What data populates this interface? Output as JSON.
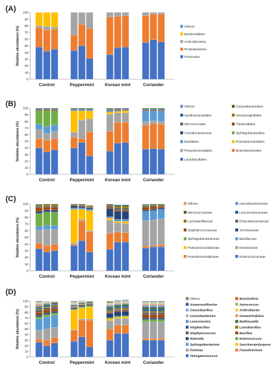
{
  "chart_data": [
    {
      "panel_label": "(A)",
      "type": "bar",
      "stacked": true,
      "ylabel": "Relative abundance (%)",
      "ylim": [
        0,
        100
      ],
      "yticks": [
        0,
        10,
        20,
        30,
        40,
        50,
        60,
        70,
        80,
        90,
        100
      ],
      "groups": [
        "Control",
        "Peppermint",
        "Korean mint",
        "Coriander"
      ],
      "bars_per_group": 3,
      "legend_italic": false,
      "legend_columns": 1,
      "series": [
        {
          "name": "Firmicutes",
          "color": "#4472C4",
          "values": [
            48,
            42,
            45,
            43,
            50,
            31,
            37,
            47,
            48,
            55,
            59,
            56
          ]
        },
        {
          "name": "Proteobacteria",
          "color": "#ED7D31",
          "values": [
            29,
            32,
            30,
            23,
            32,
            45,
            56,
            47,
            47,
            40,
            38,
            41
          ]
        },
        {
          "name": "Actinobacteria",
          "color": "#A5A5A5",
          "values": [
            3,
            5,
            3,
            34,
            18,
            24,
            7,
            6,
            5,
            5,
            3,
            3
          ]
        },
        {
          "name": "Bacteroidetes",
          "color": "#FFC000",
          "values": [
            20,
            21,
            22,
            0,
            0,
            0,
            0,
            0,
            0,
            0,
            0,
            0
          ]
        },
        {
          "name": "Others",
          "color": "#5B9BD5",
          "values": [
            0,
            0,
            0,
            0,
            0,
            0,
            0,
            0,
            0,
            0,
            0,
            0
          ]
        }
      ]
    },
    {
      "panel_label": "(B)",
      "type": "bar",
      "stacked": true,
      "ylabel": "Relative abundance (%)",
      "ylim": [
        0,
        100
      ],
      "yticks": [
        0,
        10,
        20,
        30,
        40,
        50,
        60,
        70,
        80,
        90,
        100
      ],
      "groups": [
        "Control",
        "Peppermint",
        "Korean mint",
        "Coriander"
      ],
      "bars_per_group": 3,
      "legend_italic": false,
      "legend_columns": 2,
      "series": [
        {
          "name": "Lactobacillales",
          "color": "#4472C4",
          "values": [
            40,
            34,
            37,
            40,
            48,
            28,
            35,
            47,
            48,
            38,
            39,
            38
          ]
        },
        {
          "name": "Enterobacterales",
          "color": "#ED7D31",
          "values": [
            14,
            18,
            17,
            16,
            6,
            36,
            30,
            32,
            31,
            36,
            38,
            38
          ]
        },
        {
          "name": "Pseudomonadales",
          "color": "#A5A5A5",
          "values": [
            14,
            10,
            11,
            8,
            28,
            20,
            26,
            14,
            14,
            6,
            4,
            4
          ]
        },
        {
          "name": "Pseudonocardiales",
          "color": "#FFC000",
          "values": [
            0,
            0,
            0,
            32,
            14,
            12,
            3,
            2,
            3,
            0,
            0,
            0
          ]
        },
        {
          "name": "Bacillales",
          "color": "#5B9BD5",
          "values": [
            8,
            10,
            10,
            1,
            1,
            1,
            2,
            1,
            1,
            16,
            15,
            16
          ]
        },
        {
          "name": "Sphingobacteriales",
          "color": "#70AD47",
          "values": [
            20,
            24,
            21,
            0,
            0,
            0,
            0,
            0,
            0,
            0,
            0,
            0
          ]
        },
        {
          "name": "Coriobacteriaceae",
          "color": "#264478",
          "values": [
            0,
            0,
            0,
            0,
            0,
            0,
            0,
            0,
            0,
            0,
            0,
            0
          ]
        },
        {
          "name": "Tissierellales",
          "color": "#9E480E",
          "values": [
            1,
            1,
            1,
            0,
            0,
            0,
            1,
            1,
            1,
            1,
            1,
            1
          ]
        },
        {
          "name": "Micrococcales",
          "color": "#636363",
          "values": [
            1,
            1,
            1,
            1,
            1,
            1,
            1,
            1,
            1,
            1,
            1,
            1
          ]
        },
        {
          "name": "Oceanospirillales",
          "color": "#997300",
          "values": [
            0,
            0,
            0,
            0,
            0,
            0,
            0,
            0,
            0,
            0,
            0,
            0
          ]
        },
        {
          "name": "Xanthomonadales",
          "color": "#255E91",
          "values": [
            1,
            1,
            1,
            1,
            1,
            1,
            1,
            1,
            1,
            1,
            1,
            1
          ]
        },
        {
          "name": "Corynebacteriales",
          "color": "#43682B",
          "values": [
            1,
            1,
            1,
            1,
            1,
            1,
            1,
            1,
            0,
            1,
            1,
            1
          ]
        },
        {
          "name": "Others",
          "color": "#698ED0",
          "values": [
            0,
            0,
            0,
            0,
            0,
            0,
            0,
            0,
            0,
            0,
            0,
            0
          ]
        }
      ]
    },
    {
      "panel_label": "(C)",
      "type": "bar",
      "stacked": true,
      "ylabel": "Relative abundance (%)",
      "ylim": [
        0,
        100
      ],
      "yticks": [
        0,
        10,
        20,
        30,
        40,
        50,
        60,
        70,
        80,
        90,
        100
      ],
      "groups": [
        "Control",
        "Peppermint",
        "Korean mint",
        "Coriander"
      ],
      "bars_per_group": 3,
      "legend_italic": false,
      "legend_columns": 2,
      "series": [
        {
          "name": "Enterococcaceae",
          "color": "#4472C4",
          "values": [
            33,
            28,
            30,
            38,
            45,
            28,
            32,
            43,
            43,
            34,
            36,
            36
          ]
        },
        {
          "name": "Pseudomonadaceae",
          "color": "#ED7D31",
          "values": [
            8,
            10,
            10,
            2,
            30,
            30,
            24,
            15,
            14,
            3,
            2,
            3
          ]
        },
        {
          "name": "Erwiniaceae",
          "color": "#A5A5A5",
          "values": [
            20,
            24,
            22,
            2,
            2,
            2,
            20,
            14,
            14,
            38,
            38,
            39
          ]
        },
        {
          "name": "Pseudonocardiaceae",
          "color": "#FFC000",
          "values": [
            0,
            0,
            0,
            50,
            15,
            30,
            3,
            2,
            3,
            0,
            0,
            0
          ]
        },
        {
          "name": "Bacillaceae",
          "color": "#5B9BD5",
          "values": [
            5,
            6,
            6,
            2,
            2,
            2,
            2,
            3,
            3,
            14,
            14,
            14
          ]
        },
        {
          "name": "Sphingobacteriaceae",
          "color": "#70AD47",
          "values": [
            20,
            20,
            20,
            0,
            0,
            0,
            0,
            0,
            0,
            0,
            0,
            0
          ]
        },
        {
          "name": "Yersiniaceae",
          "color": "#264478",
          "values": [
            3,
            3,
            3,
            3,
            2,
            2,
            12,
            12,
            12,
            2,
            2,
            2
          ]
        },
        {
          "name": "Staphylococcaceae",
          "color": "#9E480E",
          "values": [
            5,
            4,
            4,
            1,
            1,
            1,
            2,
            2,
            2,
            4,
            4,
            2
          ]
        },
        {
          "name": "Enterobacteriaceae",
          "color": "#636363",
          "values": [
            2,
            2,
            2,
            1,
            1,
            1,
            3,
            3,
            3,
            2,
            2,
            2
          ]
        },
        {
          "name": "Lactobacillaceae",
          "color": "#997300",
          "values": [
            2,
            2,
            2,
            0,
            1,
            1,
            1,
            2,
            2,
            1,
            1,
            1
          ]
        },
        {
          "name": "Leuconostocaceae",
          "color": "#255E91",
          "values": [
            0,
            0,
            0,
            0,
            0,
            0,
            0,
            0,
            0,
            0,
            0,
            0
          ]
        },
        {
          "name": "Micrococcaceae",
          "color": "#43682B",
          "values": [
            1,
            1,
            1,
            1,
            1,
            1,
            1,
            2,
            2,
            1,
            1,
            1
          ]
        },
        {
          "name": "Carnobacteriaceae",
          "color": "#698ED0",
          "values": [
            1,
            0,
            0,
            0,
            0,
            0,
            0,
            1,
            1,
            1,
            0,
            0
          ]
        },
        {
          "name": "Others",
          "color": "#F1975A",
          "values": [
            0,
            0,
            0,
            0,
            0,
            0,
            0,
            0,
            0,
            0,
            0,
            0
          ]
        }
      ]
    },
    {
      "panel_label": "(D)",
      "type": "bar",
      "stacked": true,
      "ylabel": "Relative abundance (%)",
      "ylim": [
        0,
        100
      ],
      "yticks": [
        0,
        10,
        20,
        30,
        40,
        50,
        60,
        70,
        80,
        90,
        100
      ],
      "groups": [
        "Control",
        "Peppermint",
        "Korean mint",
        "Coriander"
      ],
      "bars_per_group": 3,
      "legend_italic": true,
      "legend_columns": 2,
      "series": [
        {
          "name": "Tetragenococcus",
          "color": "#4472C4",
          "values": [
            26,
            20,
            25,
            28,
            36,
            18,
            30,
            42,
            42,
            30,
            30,
            30
          ]
        },
        {
          "name": "Pseudomonas",
          "color": "#ED7D31",
          "values": [
            6,
            10,
            10,
            20,
            30,
            48,
            20,
            15,
            15,
            3,
            3,
            3
          ]
        },
        {
          "name": "Pantoea",
          "color": "#A5A5A5",
          "values": [
            16,
            20,
            18,
            1,
            2,
            2,
            15,
            12,
            12,
            30,
            30,
            30
          ]
        },
        {
          "name": "Saccharopolyspora",
          "color": "#FFC000",
          "values": [
            0,
            0,
            0,
            35,
            20,
            22,
            3,
            2,
            3,
            0,
            0,
            0
          ]
        },
        {
          "name": "Sphingobacterium",
          "color": "#5B9BD5",
          "values": [
            20,
            22,
            22,
            0,
            0,
            0,
            0,
            0,
            0,
            0,
            0,
            0
          ]
        },
        {
          "name": "Enterococcus",
          "color": "#70AD47",
          "values": [
            4,
            4,
            4,
            2,
            2,
            2,
            2,
            2,
            2,
            4,
            4,
            4
          ]
        },
        {
          "name": "Rahnella",
          "color": "#264478",
          "values": [
            3,
            3,
            3,
            2,
            2,
            2,
            8,
            8,
            8,
            3,
            3,
            3
          ]
        },
        {
          "name": "Bacillus",
          "color": "#9E480E",
          "values": [
            5,
            5,
            5,
            1,
            1,
            1,
            2,
            2,
            2,
            6,
            6,
            6
          ]
        },
        {
          "name": "Staphylococcus",
          "color": "#636363",
          "values": [
            4,
            4,
            4,
            1,
            1,
            1,
            2,
            2,
            2,
            4,
            4,
            4
          ]
        },
        {
          "name": "Lactobacillus",
          "color": "#997300",
          "values": [
            2,
            2,
            2,
            1,
            1,
            1,
            2,
            2,
            2,
            2,
            2,
            2
          ]
        },
        {
          "name": "Virgibacillus",
          "color": "#255E91",
          "values": [
            2,
            2,
            2,
            1,
            1,
            1,
            3,
            3,
            3,
            4,
            4,
            4
          ]
        },
        {
          "name": "Buttiauxella",
          "color": "#43682B",
          "values": [
            2,
            2,
            2,
            1,
            1,
            1,
            3,
            3,
            3,
            3,
            3,
            3
          ]
        },
        {
          "name": "Leuconostoc",
          "color": "#698ED0",
          "values": [
            2,
            2,
            1,
            1,
            1,
            1,
            2,
            2,
            2,
            3,
            3,
            3
          ]
        },
        {
          "name": "Oceanirhabdus",
          "color": "#F1975A",
          "values": [
            2,
            1,
            1,
            1,
            0,
            0,
            1,
            1,
            1,
            2,
            2,
            2
          ]
        },
        {
          "name": "Carnobacterium",
          "color": "#B7B7B7",
          "values": [
            2,
            1,
            1,
            1,
            1,
            0,
            2,
            1,
            1,
            2,
            2,
            2
          ]
        },
        {
          "name": "Arthrobacter",
          "color": "#FFCD33",
          "values": [
            1,
            1,
            0,
            1,
            1,
            0,
            1,
            1,
            1,
            1,
            1,
            1
          ]
        },
        {
          "name": "Cerasibacillus",
          "color": "#7CAFDD",
          "values": [
            1,
            1,
            0,
            1,
            1,
            0,
            1,
            1,
            1,
            1,
            1,
            1
          ]
        },
        {
          "name": "Aerococcus",
          "color": "#8CC168",
          "values": [
            1,
            0,
            0,
            1,
            0,
            0,
            1,
            1,
            1,
            1,
            1,
            1
          ]
        },
        {
          "name": "Anaerosalibacter",
          "color": "#335AA1",
          "values": [
            1,
            0,
            0,
            1,
            0,
            0,
            1,
            1,
            1,
            1,
            1,
            1
          ]
        },
        {
          "name": "Brochothrix",
          "color": "#D26012",
          "values": [
            0,
            0,
            0,
            0,
            0,
            0,
            1,
            0,
            0,
            0,
            0,
            0
          ]
        },
        {
          "name": "Others",
          "color": "#848484",
          "values": [
            0,
            0,
            0,
            0,
            0,
            0,
            0,
            0,
            0,
            0,
            0,
            0
          ]
        }
      ]
    }
  ]
}
